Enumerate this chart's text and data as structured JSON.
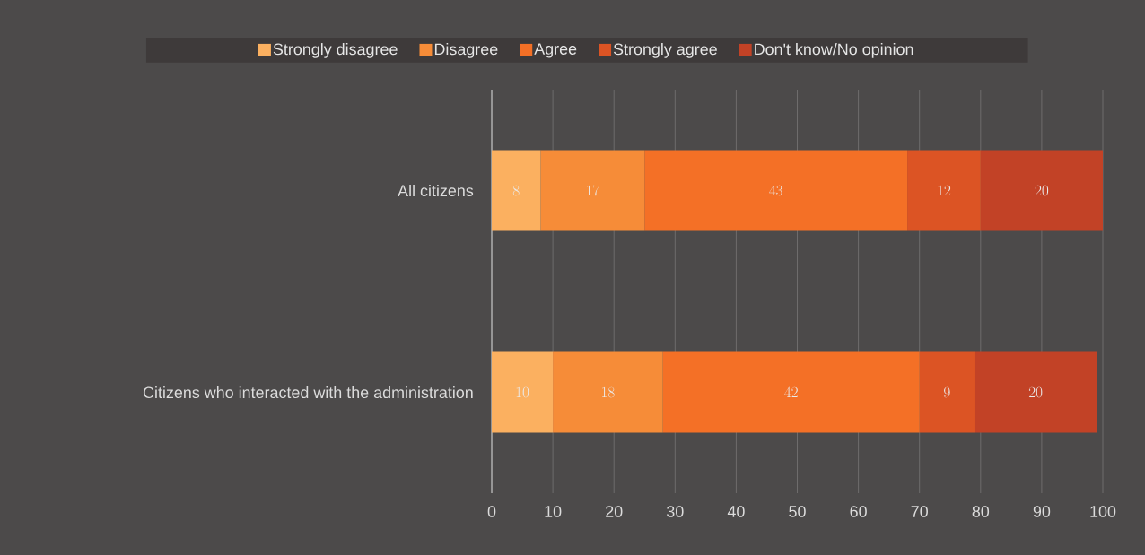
{
  "chart_data": {
    "type": "bar",
    "orientation": "horizontal",
    "stacked": true,
    "data_labels": true,
    "grid": "x",
    "legend": "top",
    "categories": [
      "All citizens",
      "Citizens who interacted with the administration"
    ],
    "series": [
      {
        "name": "Strongly disagree",
        "color": "#fbb060",
        "values": [
          8,
          10
        ]
      },
      {
        "name": "Disagree",
        "color": "#f68c38",
        "values": [
          17,
          18
        ]
      },
      {
        "name": "Agree",
        "color": "#f47026",
        "values": [
          43,
          42
        ]
      },
      {
        "name": "Strongly agree",
        "color": "#dc5424",
        "values": [
          12,
          9
        ]
      },
      {
        "name": "Don't know/No opinion",
        "color": "#c24226",
        "values": [
          20,
          20
        ]
      }
    ],
    "xlim": [
      0,
      100
    ],
    "xticks": [
      0,
      10,
      20,
      30,
      40,
      50,
      60,
      70,
      80,
      90,
      100
    ]
  }
}
